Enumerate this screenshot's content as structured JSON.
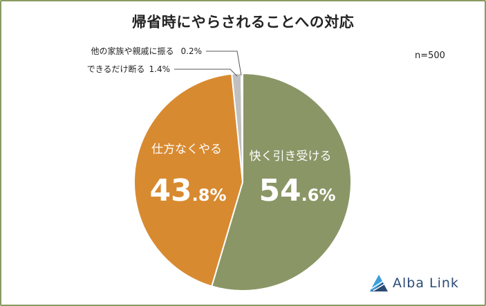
{
  "title": "帰省時にやらされることへの対応",
  "sample_size": "n=500",
  "brand": {
    "name": "Alba Link",
    "primary_color": "#2b4a73",
    "accent_color": "#3aa0dc"
  },
  "chart_data": {
    "type": "pie",
    "start": "12 o'clock",
    "direction": "clockwise",
    "slices": [
      {
        "label": "快く引き受ける",
        "value": 54.6,
        "display_int": "54",
        "display_dec": ".6%",
        "color": "#8a9666"
      },
      {
        "label": "仕方なくやる",
        "value": 43.8,
        "display_int": "43",
        "display_dec": ".8%",
        "color": "#d88a30"
      },
      {
        "label": "できるだけ断る",
        "value": 1.4,
        "display": "1.4%",
        "color": "#c0c0c0"
      },
      {
        "label": "他の家族や親戚に振る",
        "value": 0.2,
        "display": "0.2%",
        "color": "#e0e0e0"
      }
    ]
  }
}
